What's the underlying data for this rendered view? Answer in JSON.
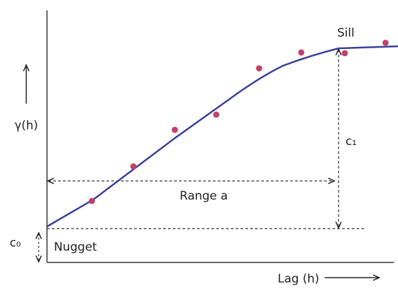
{
  "labels": {
    "sill": "Sill",
    "y_axis": "γ(h)",
    "c1": "c₁",
    "range": "Range a",
    "c0": "c₀",
    "nugget": "Nugget",
    "x_axis": "Lag (h)"
  }
}
